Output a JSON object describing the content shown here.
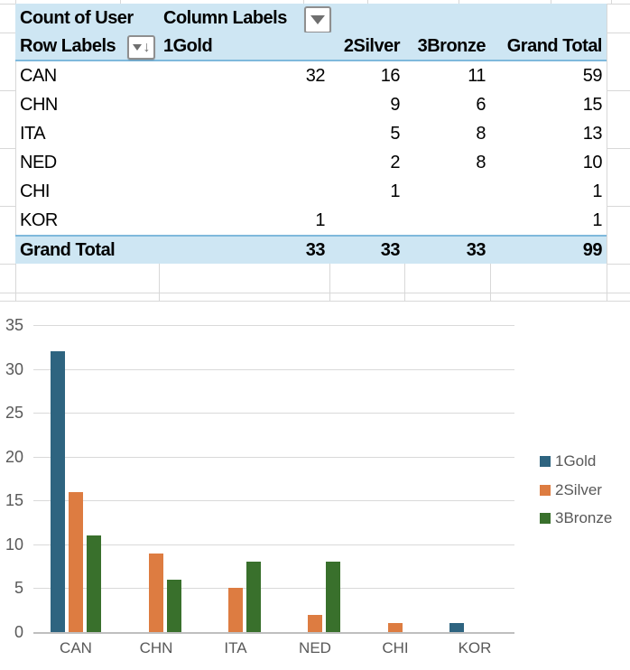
{
  "pivot": {
    "value_field": "Count of User",
    "column_labels": "Column Labels",
    "row_labels": "Row Labels",
    "columns": [
      "1Gold",
      "2Silver",
      "3Bronze",
      "Grand Total"
    ],
    "rows": [
      {
        "label": "CAN",
        "values": [
          "32",
          "16",
          "11",
          "59"
        ]
      },
      {
        "label": "CHN",
        "values": [
          "",
          "9",
          "6",
          "15"
        ]
      },
      {
        "label": "ITA",
        "values": [
          "",
          "5",
          "8",
          "13"
        ]
      },
      {
        "label": "NED",
        "values": [
          "",
          "2",
          "8",
          "10"
        ]
      },
      {
        "label": "CHI",
        "values": [
          "",
          "1",
          "",
          "1"
        ]
      },
      {
        "label": "KOR",
        "values": [
          "1",
          "",
          "",
          "1"
        ]
      }
    ],
    "grand_total": {
      "label": "Grand Total",
      "values": [
        "33",
        "33",
        "33",
        "99"
      ]
    }
  },
  "chart_data": {
    "type": "bar",
    "title": "",
    "categories": [
      "CAN",
      "CHN",
      "ITA",
      "NED",
      "CHI",
      "KOR"
    ],
    "series": [
      {
        "name": "1Gold",
        "color": "#2E6480",
        "values": [
          32,
          0,
          0,
          0,
          0,
          1
        ]
      },
      {
        "name": "2Silver",
        "color": "#DD7C41",
        "values": [
          16,
          9,
          5,
          2,
          1,
          0
        ]
      },
      {
        "name": "3Bronze",
        "color": "#39702C",
        "values": [
          11,
          6,
          8,
          8,
          0,
          0
        ]
      }
    ],
    "ylim": [
      0,
      35
    ],
    "yticks": [
      0,
      5,
      10,
      15,
      20,
      25,
      30,
      35
    ],
    "grid": true,
    "legend_position": "right"
  },
  "colors": {
    "header_fill": "#CEE6F3",
    "accent_line": "#7FB9DC",
    "sheet_gridline": "#D8D8D8",
    "chart_gridline": "#D9D9D9",
    "chart_axis_line": "#BFBFBF",
    "chart_text": "#595959"
  }
}
